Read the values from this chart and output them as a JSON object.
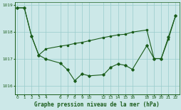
{
  "title": "Graphe pression niveau de la mer (hPa)",
  "background_color": "#cce8e8",
  "line_color": "#1a5c1a",
  "grid_color": "#99cccc",
  "series1_x": [
    0,
    1,
    2,
    3,
    4,
    6,
    7,
    8,
    9,
    10,
    12,
    13,
    14,
    15,
    16,
    18,
    19,
    20,
    21,
    22
  ],
  "series1_y": [
    1018.9,
    1018.9,
    1017.85,
    1017.15,
    1017.0,
    1016.85,
    1016.6,
    1016.2,
    1016.45,
    1016.38,
    1016.42,
    1016.7,
    1016.82,
    1016.77,
    1016.62,
    1017.5,
    1017.02,
    1017.02,
    1017.82,
    1018.62
  ],
  "series2_x": [
    0,
    1,
    2,
    3,
    4,
    6,
    7,
    8,
    9,
    10,
    12,
    13,
    14,
    15,
    16,
    18,
    19,
    20,
    21,
    22
  ],
  "series2_y": [
    1018.9,
    1018.9,
    1017.85,
    1017.15,
    1017.38,
    1017.48,
    1017.52,
    1017.58,
    1017.62,
    1017.68,
    1017.8,
    1017.85,
    1017.9,
    1017.92,
    1018.0,
    1018.08,
    1017.02,
    1017.02,
    1017.75,
    1018.62
  ],
  "ylim": [
    1015.7,
    1019.1
  ],
  "yticks": [
    1016,
    1017,
    1018,
    1019
  ],
  "xticks": [
    0,
    1,
    2,
    3,
    4,
    6,
    7,
    8,
    9,
    10,
    12,
    13,
    14,
    15,
    16,
    18,
    19,
    20,
    21,
    22
  ],
  "xlim": [
    -0.3,
    22.5
  ]
}
